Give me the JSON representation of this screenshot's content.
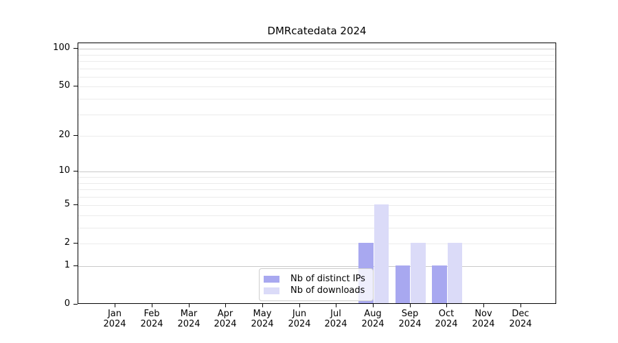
{
  "chart_data": {
    "type": "bar",
    "title": "DMRcatedata 2024",
    "categories": [
      "Jan 2024",
      "Feb 2024",
      "Mar 2024",
      "Apr 2024",
      "May 2024",
      "Jun 2024",
      "Jul 2024",
      "Aug 2024",
      "Sep 2024",
      "Oct 2024",
      "Nov 2024",
      "Dec 2024"
    ],
    "series": [
      {
        "name": "Nb of distinct IPs",
        "color": "#a8a8f0",
        "values": [
          0,
          0,
          0,
          0,
          0,
          0,
          0,
          2,
          1,
          1,
          0,
          0
        ]
      },
      {
        "name": "Nb of downloads",
        "color": "#dbdbf8",
        "values": [
          0,
          0,
          0,
          0,
          0,
          0,
          0,
          5,
          2,
          2,
          0,
          0
        ]
      }
    ],
    "xlabel": "",
    "ylabel": "",
    "yscale": "log1p",
    "yticks": [
      0,
      1,
      2,
      5,
      10,
      20,
      50,
      100
    ],
    "ylim": [
      0,
      111
    ],
    "grid": {
      "major_values": [
        1,
        10,
        100
      ],
      "minor_values": [
        2,
        3,
        4,
        5,
        6,
        7,
        8,
        9,
        20,
        30,
        40,
        50,
        60,
        70,
        80,
        90
      ],
      "major_color": "#c8c8c8",
      "minor_color": "#ebebeb"
    },
    "legend": {
      "position": "inside-bottom-center",
      "items": [
        "Nb of distinct IPs",
        "Nb of downloads"
      ]
    }
  },
  "colors": {
    "background": "#ffffff",
    "spine": "#000000",
    "text": "#000000"
  }
}
